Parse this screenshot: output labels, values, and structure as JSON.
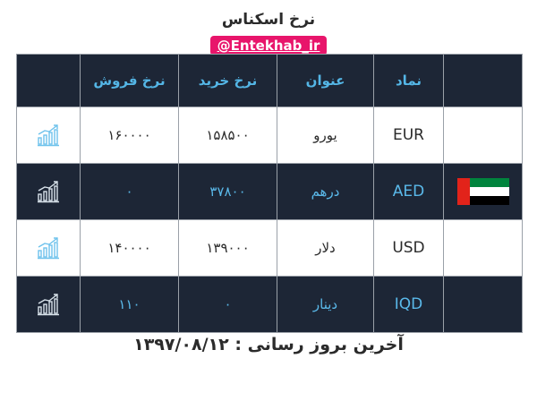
{
  "title": "نرخ اسکناس",
  "watermark": "@Entekhab_ir",
  "table": {
    "headers": {
      "symbol": "نماد",
      "name": "عنوان",
      "buy": "نرخ خرید",
      "sell": "نرخ فروش"
    },
    "rows": [
      {
        "code": "EUR",
        "name": "یورو",
        "buy": "۱۵۸۵۰۰",
        "sell": "۱۶۰۰۰۰",
        "flag": "",
        "icon": "chart-up-icon"
      },
      {
        "code": "AED",
        "name": "درهم",
        "buy": "۳۷۸۰۰",
        "sell": "۰",
        "flag": "uae-flag",
        "icon": "chart-up-icon"
      },
      {
        "code": "USD",
        "name": "دلار",
        "buy": "۱۳۹۰۰۰",
        "sell": "۱۴۰۰۰۰",
        "flag": "",
        "icon": "chart-up-icon"
      },
      {
        "code": "IQD",
        "name": "دینار",
        "buy": "۰",
        "sell": "۱۱۰",
        "flag": "",
        "icon": "chart-up-icon"
      }
    ]
  },
  "footer": "آخرین بروز رسانی : ۱۳۹۷/۰۸/۱۲",
  "colors": {
    "dark_row": "#1d2636",
    "accent": "#54b6e6",
    "watermark_bg": "#e8156b"
  }
}
